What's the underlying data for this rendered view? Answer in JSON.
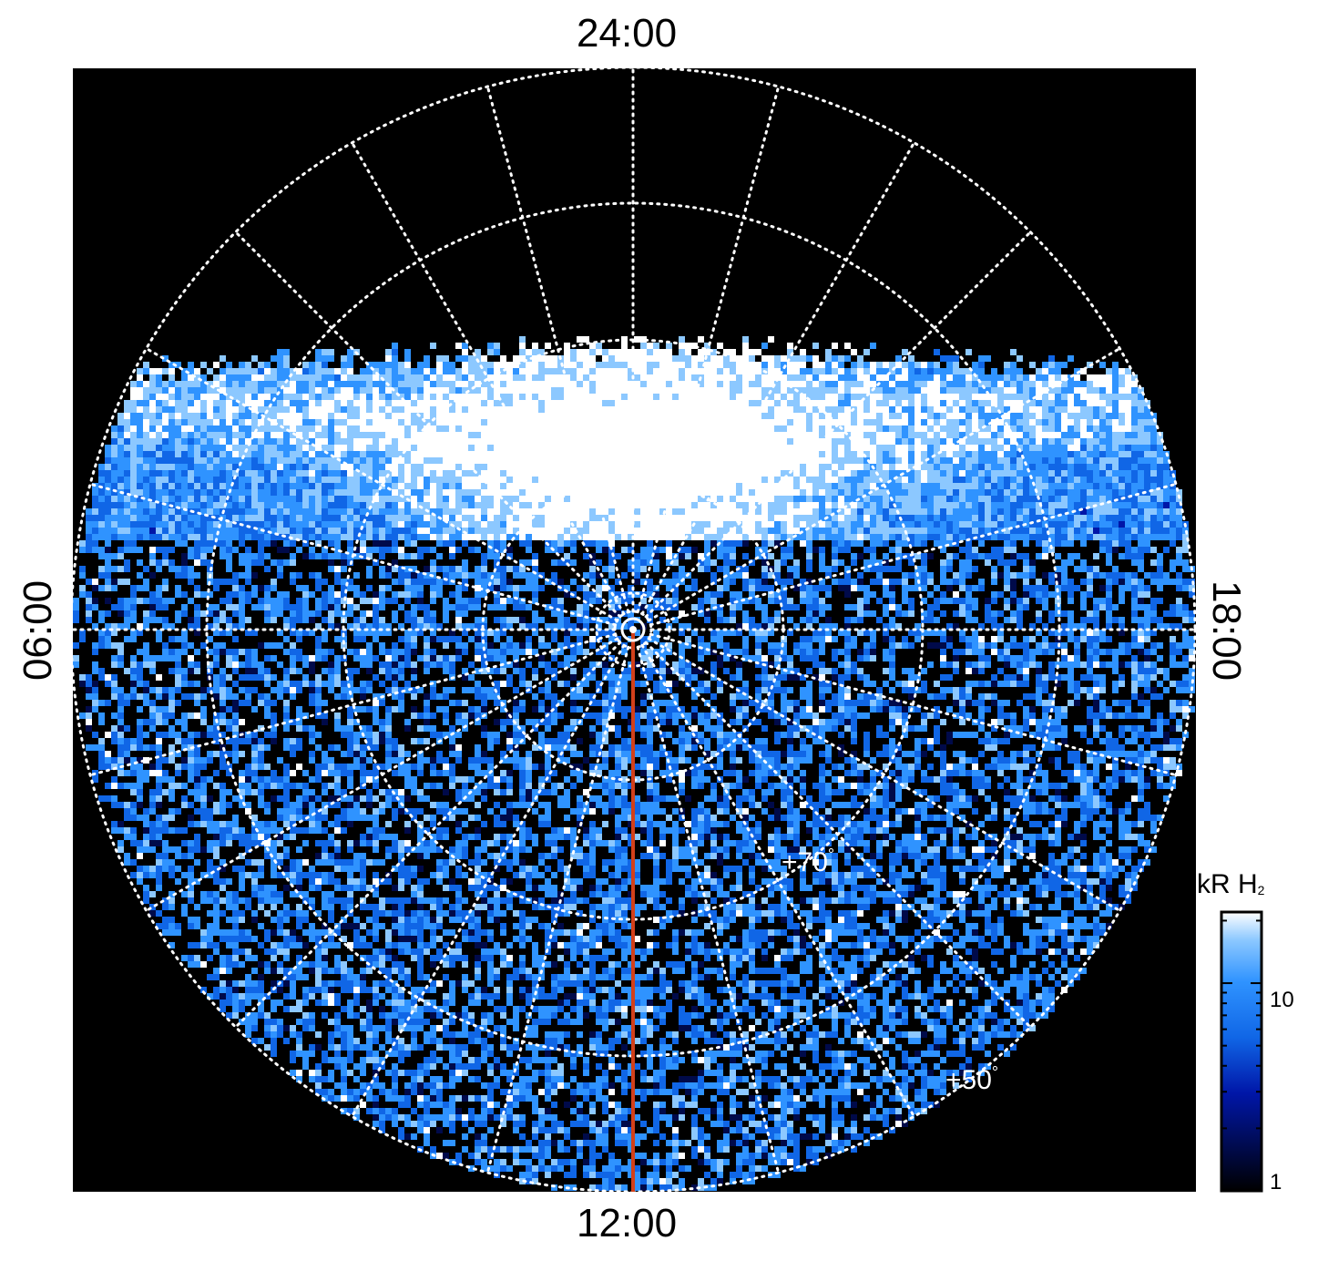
{
  "local_time_labels": {
    "top": "24:00",
    "bottom": "12:00",
    "left": "06:00",
    "right": "18:00"
  },
  "latitude_labels": {
    "inner": {
      "value": "+70",
      "degree": "°"
    },
    "outer": {
      "value": "+50",
      "degree": "°"
    }
  },
  "colorbar": {
    "unit": "kR H",
    "unit_subscript": "2",
    "tick_high": "10",
    "tick_low": "1",
    "scale": "log"
  },
  "colors": {
    "background": "#000000",
    "grid": "#ffffff",
    "meridian_line": "#d2401a",
    "colormap": [
      "#000000",
      "#000a4a",
      "#0016a8",
      "#1066e6",
      "#2f93ff",
      "#8cc8ff",
      "#ffffff"
    ]
  },
  "icons": {
    "pole_marker": "circle-dot-icon"
  }
}
